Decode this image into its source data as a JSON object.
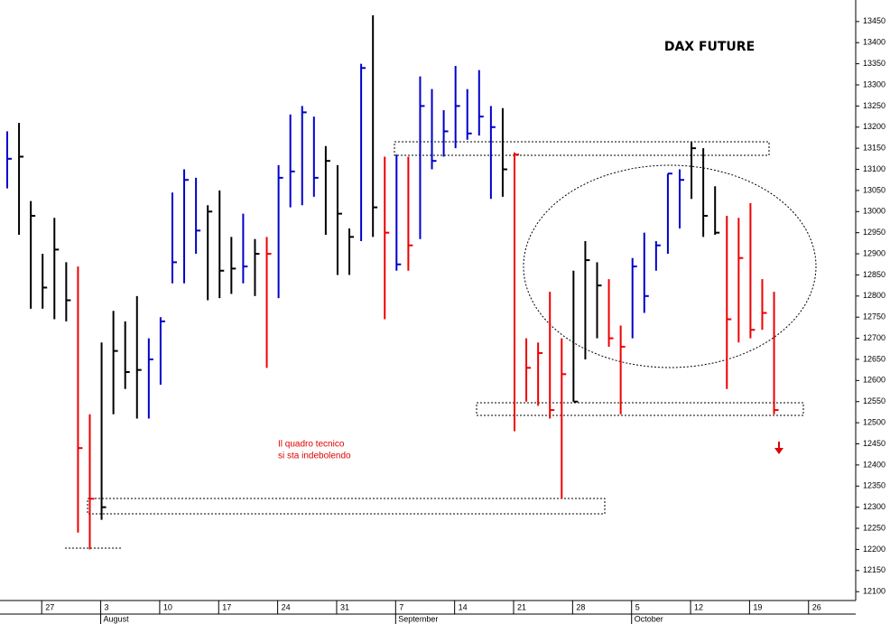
{
  "chart_data": {
    "type": "ohlc",
    "title": "DAX FUTURE",
    "annotations": [
      "Il quadro tecnico",
      "si sta indebolendo"
    ],
    "months": [
      "August",
      "September",
      "October"
    ],
    "categories": [
      null,
      null,
      null,
      "27",
      null,
      null,
      null,
      null,
      "3",
      null,
      null,
      null,
      null,
      "10",
      null,
      null,
      null,
      null,
      "17",
      null,
      null,
      null,
      null,
      "24",
      null,
      null,
      null,
      null,
      "31",
      null,
      null,
      null,
      null,
      "7",
      null,
      null,
      null,
      null,
      "14",
      null,
      null,
      null,
      null,
      "21",
      null,
      null,
      null,
      null,
      "28",
      null,
      null,
      null,
      null,
      "5",
      null,
      null,
      null,
      null,
      "12",
      null,
      null,
      null,
      null,
      "19",
      null,
      null,
      null,
      null,
      "26"
    ],
    "high": [
      13190,
      13210,
      13025,
      12900,
      12985,
      12880,
      12870,
      12520,
      12690,
      12765,
      12740,
      12800,
      12700,
      12750,
      13045,
      13100,
      13080,
      13015,
      13050,
      12940,
      12995,
      12935,
      12940,
      13110,
      13230,
      13250,
      13225,
      13155,
      13110,
      12960,
      13350,
      13465,
      13130,
      13135,
      13130,
      13320,
      13290,
      13240,
      13345,
      13290,
      13335,
      13250,
      13245,
      13140,
      12700,
      12690,
      12810,
      12700,
      12860,
      12930,
      12880,
      12840,
      12730,
      12890,
      12950,
      12930,
      13090,
      13100,
      13165,
      13150,
      13060,
      12990,
      12985,
      13020,
      12840,
      12810,
      null,
      null,
      null
    ],
    "low": [
      13055,
      12945,
      12770,
      12770,
      12745,
      12740,
      12240,
      12200,
      12270,
      12520,
      12580,
      12510,
      12510,
      12590,
      12830,
      12830,
      12900,
      12790,
      12795,
      12805,
      12830,
      12800,
      12630,
      12795,
      13010,
      13015,
      13035,
      12945,
      12850,
      12850,
      12930,
      12940,
      12745,
      12860,
      12860,
      12935,
      13100,
      13130,
      13150,
      13170,
      13180,
      13030,
      13035,
      12480,
      12550,
      12540,
      12510,
      12320,
      12550,
      12650,
      12700,
      12680,
      12520,
      12700,
      12760,
      12860,
      12900,
      12960,
      13030,
      12940,
      12945,
      12580,
      12690,
      12700,
      12720,
      12520,
      null,
      null,
      null
    ],
    "close": [
      13125,
      13130,
      12990,
      12820,
      12910,
      12790,
      12440,
      12320,
      12300,
      12670,
      12620,
      12625,
      12650,
      12740,
      12880,
      13075,
      12955,
      13000,
      12860,
      12865,
      12870,
      12900,
      12900,
      13080,
      13095,
      13235,
      13080,
      13120,
      12995,
      12940,
      13340,
      13010,
      12950,
      12875,
      12920,
      13250,
      13120,
      13190,
      13250,
      13185,
      13225,
      13200,
      13100,
      13135,
      12630,
      12665,
      12530,
      12615,
      12550,
      12885,
      12825,
      12700,
      12680,
      12870,
      12800,
      12920,
      13090,
      13075,
      13150,
      12990,
      12950,
      12745,
      12890,
      12720,
      12760,
      12530,
      null,
      null,
      null
    ],
    "bar_colors": [
      "#0000cc",
      "#000000",
      "#000000",
      "#000000",
      "#000000",
      "#000000",
      "#ee0000",
      "#ee0000",
      "#000000",
      "#000000",
      "#000000",
      "#000000",
      "#0000cc",
      "#0000cc",
      "#0000cc",
      "#0000cc",
      "#0000cc",
      "#000000",
      "#000000",
      "#000000",
      "#0000cc",
      "#000000",
      "#ee0000",
      "#0000cc",
      "#0000cc",
      "#0000cc",
      "#0000cc",
      "#000000",
      "#000000",
      "#000000",
      "#0000cc",
      "#000000",
      "#ee0000",
      "#0000cc",
      "#ee0000",
      "#0000cc",
      "#0000cc",
      "#0000cc",
      "#0000cc",
      "#0000cc",
      "#0000cc",
      "#0000cc",
      "#000000",
      "#ee0000",
      "#ee0000",
      "#ee0000",
      "#ee0000",
      "#ee0000",
      "#000000",
      "#000000",
      "#000000",
      "#ee0000",
      "#ee0000",
      "#0000cc",
      "#0000cc",
      "#0000cc",
      "#0000cc",
      "#0000cc",
      "#000000",
      "#000000",
      "#000000",
      "#ee0000",
      "#ee0000",
      "#ee0000",
      "#ee0000",
      "#ee0000",
      null,
      null,
      null
    ],
    "ylim": [
      12079,
      13501
    ],
    "yticks": [
      12100,
      12150,
      12200,
      12250,
      12300,
      12350,
      12400,
      12450,
      12500,
      12550,
      12600,
      12650,
      12700,
      12750,
      12800,
      12850,
      12900,
      12950,
      13000,
      13050,
      13100,
      13150,
      13200,
      13250,
      13300,
      13350,
      13400,
      13450
    ],
    "grid": false
  }
}
